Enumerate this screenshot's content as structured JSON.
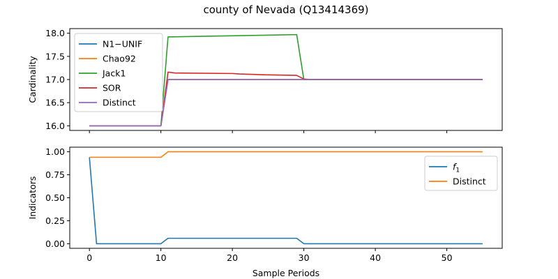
{
  "chart_data": {
    "title": "county of Nevada (Q13414369)",
    "xlabel": "Sample Periods",
    "xlim": [
      -2.75,
      57.75
    ],
    "xticks": [
      0,
      10,
      20,
      30,
      40,
      50
    ],
    "subplots": [
      {
        "type": "line",
        "ylabel": "Cardinality",
        "ylim": [
          15.9,
          18.1
        ],
        "yticks": [
          "16.0",
          "16.5",
          "17.0",
          "17.5",
          "18.0"
        ],
        "ytick_values": [
          16.0,
          16.5,
          17.0,
          17.5,
          18.0
        ],
        "legend_position": "upper-left",
        "series": [
          {
            "name": "N1−UNIF",
            "color": "#1f77b4",
            "points": [
              [
                0,
                16.0
              ],
              [
                10,
                16.0
              ],
              [
                11,
                17.0
              ],
              [
                55,
                17.0
              ]
            ]
          },
          {
            "name": "Chao92",
            "color": "#ff7f0e",
            "points": [
              [
                0,
                16.0
              ],
              [
                10,
                16.0
              ],
              [
                11,
                17.0
              ],
              [
                55,
                17.0
              ]
            ]
          },
          {
            "name": "Jack1",
            "color": "#2ca02c",
            "points": [
              [
                0,
                16.0
              ],
              [
                10,
                16.0
              ],
              [
                11,
                17.92
              ],
              [
                29,
                17.97
              ],
              [
                30,
                17.0
              ],
              [
                55,
                17.0
              ]
            ]
          },
          {
            "name": "SOR",
            "color": "#d62728",
            "points": [
              [
                0,
                16.0
              ],
              [
                10,
                16.0
              ],
              [
                11,
                17.16
              ],
              [
                12,
                17.14
              ],
              [
                20,
                17.13
              ],
              [
                21,
                17.12
              ],
              [
                25,
                17.1
              ],
              [
                29,
                17.09
              ],
              [
                30,
                17.01
              ],
              [
                31,
                17.0
              ],
              [
                55,
                17.0
              ]
            ]
          },
          {
            "name": "Distinct",
            "color": "#9467bd",
            "points": [
              [
                0,
                16.0
              ],
              [
                10,
                16.0
              ],
              [
                11,
                17.0
              ],
              [
                55,
                17.0
              ]
            ]
          }
        ]
      },
      {
        "type": "line",
        "ylabel": "Indicators",
        "ylim": [
          -0.05,
          1.05
        ],
        "yticks": [
          "0.00",
          "0.25",
          "0.50",
          "0.75",
          "1.00"
        ],
        "ytick_values": [
          0.0,
          0.25,
          0.5,
          0.75,
          1.0
        ],
        "legend_position": "upper-right",
        "series": [
          {
            "name": "f1",
            "legend_main": "f",
            "legend_sub": "1",
            "color": "#1f77b4",
            "points": [
              [
                0,
                0.94
              ],
              [
                1,
                0.0
              ],
              [
                10,
                0.0
              ],
              [
                11,
                0.059
              ],
              [
                29,
                0.059
              ],
              [
                30,
                0.0
              ],
              [
                55,
                0.0
              ]
            ]
          },
          {
            "name": "Distinct",
            "color": "#ff7f0e",
            "points": [
              [
                0,
                0.94
              ],
              [
                10,
                0.94
              ],
              [
                11,
                1.0
              ],
              [
                55,
                1.0
              ]
            ]
          }
        ]
      }
    ]
  }
}
